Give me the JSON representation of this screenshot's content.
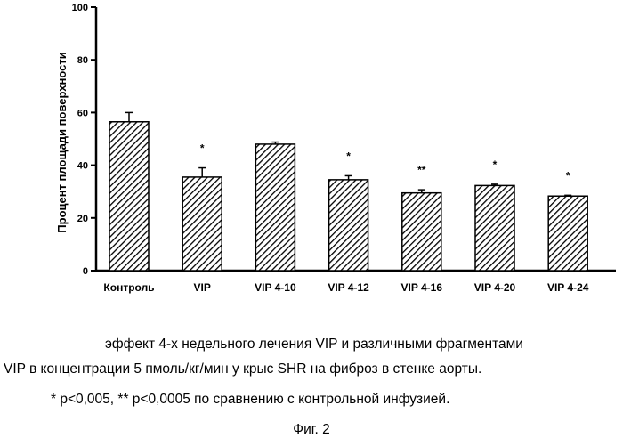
{
  "chart_data": {
    "type": "bar",
    "title": "",
    "xlabel": "",
    "ylabel": "Процент площади поверхности",
    "ylim": [
      0,
      100
    ],
    "yticks": [
      0,
      20,
      40,
      60,
      80,
      100
    ],
    "categories": [
      "Контроль",
      "VIP",
      "VIP 4-10",
      "VIP 4-12",
      "VIP 4-16",
      "VIP 4-20",
      "VIP 4-24"
    ],
    "values": [
      56.5,
      35.5,
      48,
      34.5,
      29.5,
      32.3,
      28.3
    ],
    "errors": [
      3.5,
      3.5,
      0.8,
      1.5,
      1.2,
      0.5,
      0.3
    ],
    "significance": [
      "",
      "*",
      "",
      "*",
      "**",
      "*",
      "*"
    ],
    "bar_pattern": "diagonal-hatch",
    "grid": false,
    "legend": "none"
  },
  "caption": {
    "line1": "эффект 4-х недельного лечения VIP и различными фрагментами",
    "line2": "VIP в концентрации 5 пмоль/кг/мин у крыс SHR на фиброз в стенке аорты.",
    "line3": "* p<0,005,  ** p<0,0005 по сравнению с контрольной инфузией.",
    "figure_label": "Фиг. 2"
  }
}
